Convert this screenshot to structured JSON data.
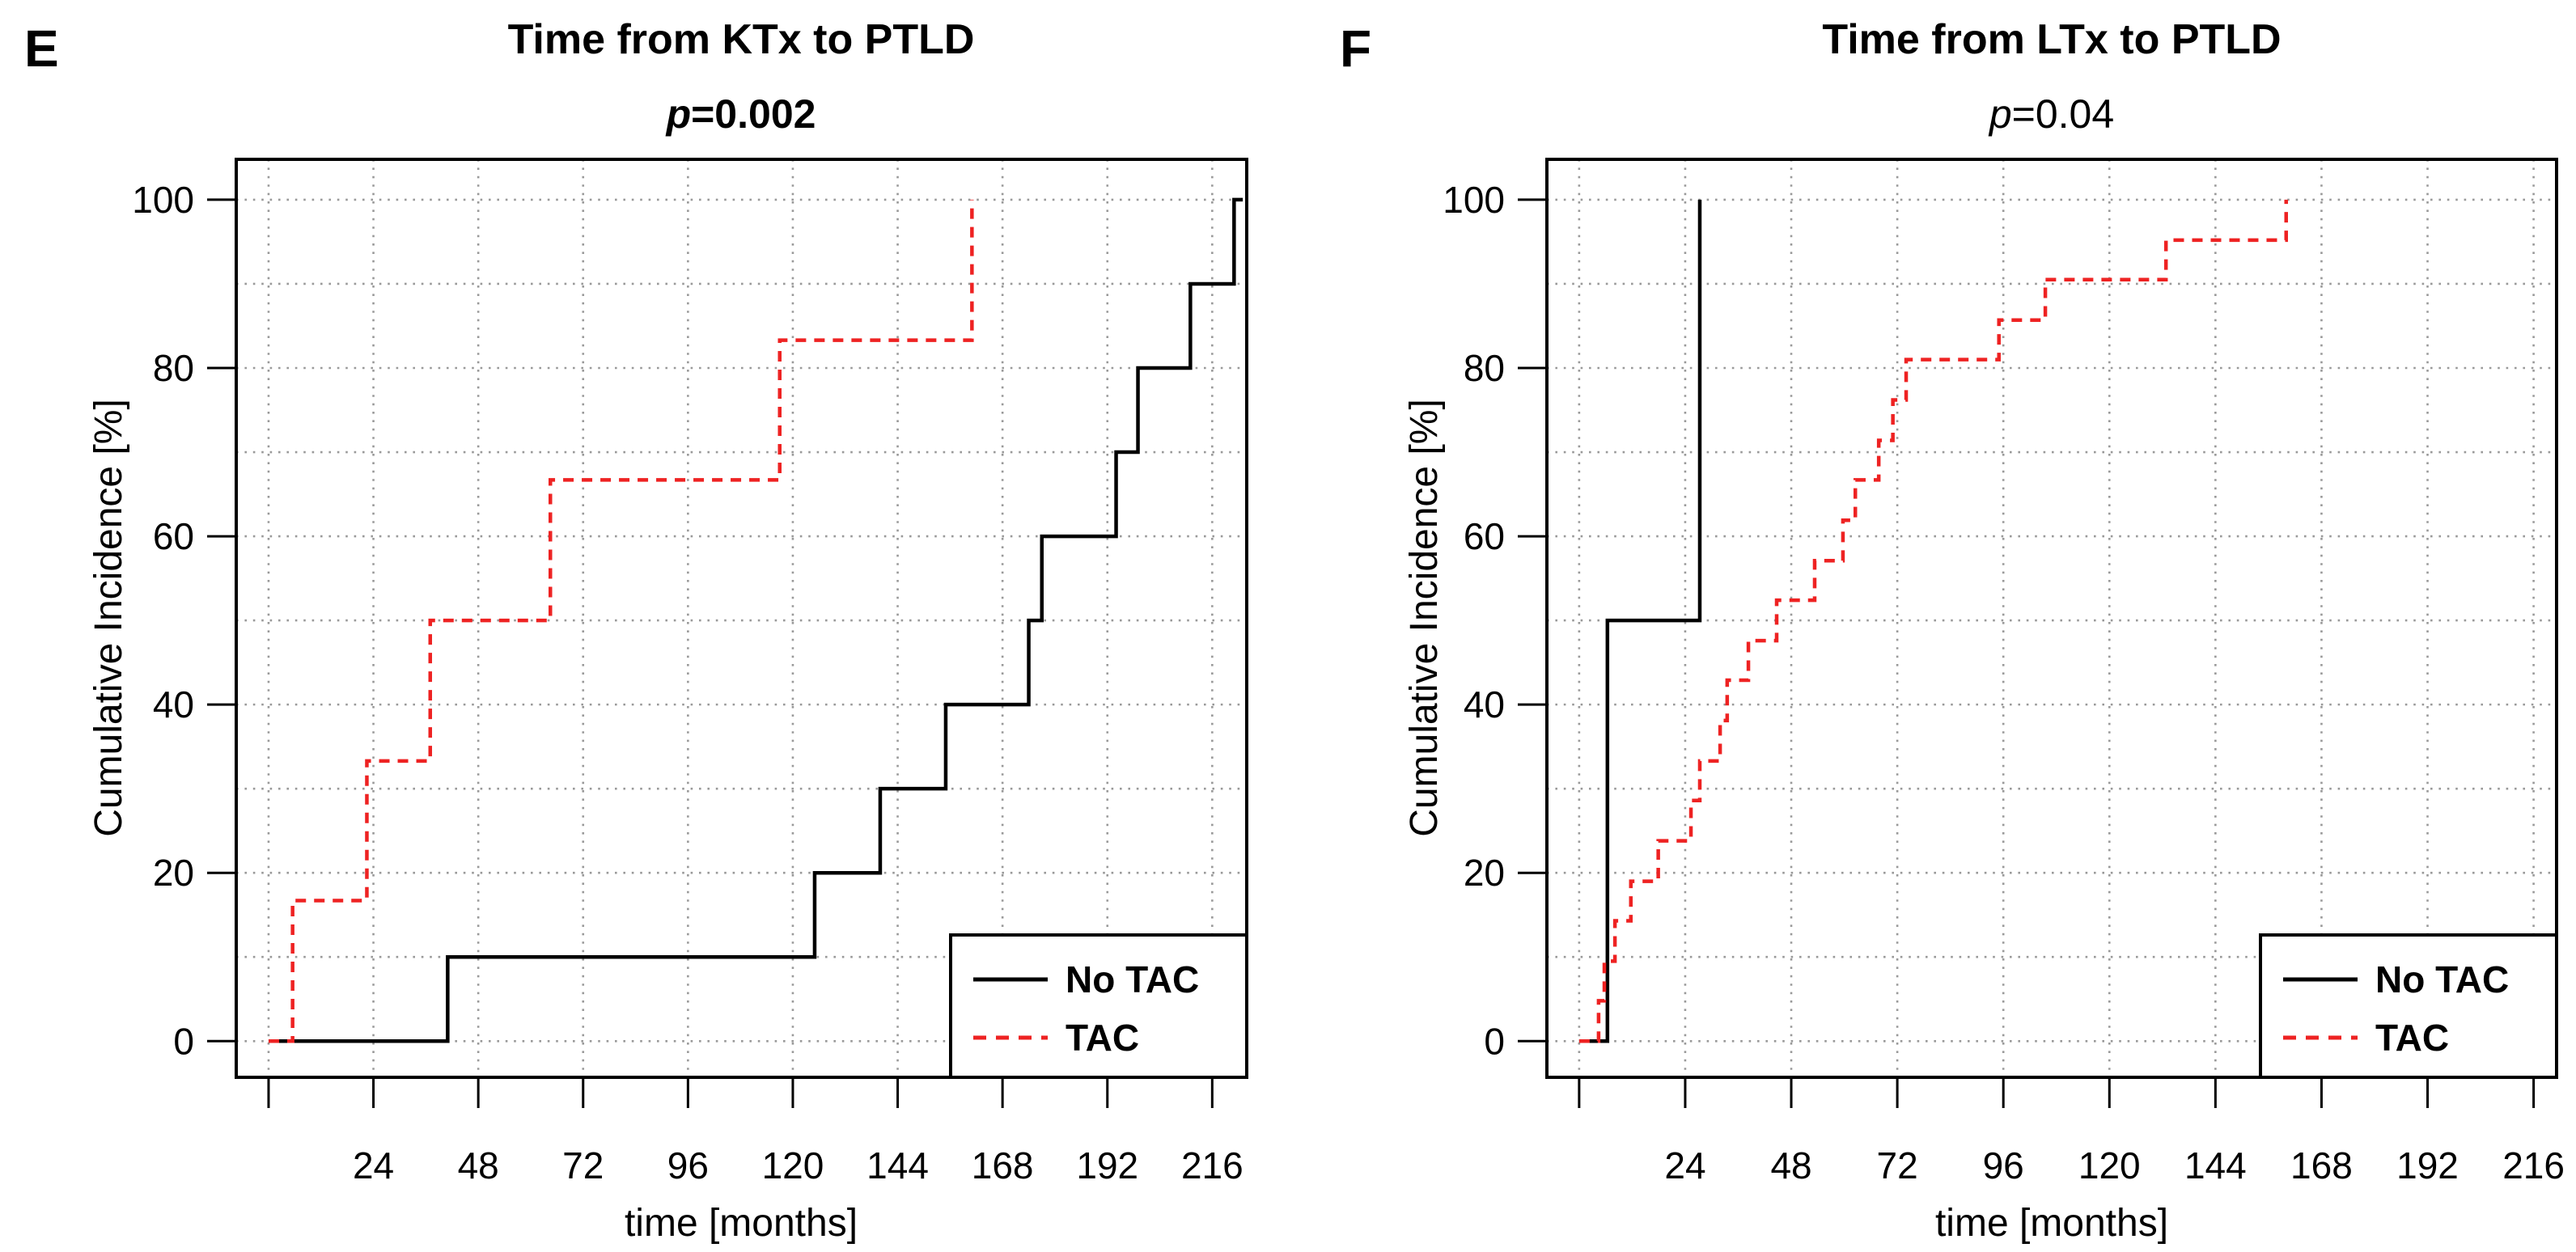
{
  "figure": {
    "background_color": "#ffffff",
    "text_color": "#000000",
    "grid_color": "#999999",
    "curve_black": "#000000",
    "curve_red": "#ee2222",
    "description": "Two cumulative incidence step plots comparing No TAC vs TAC groups"
  },
  "chart_data": [
    {
      "panel_letter": "E",
      "type": "line",
      "subtype": "step-cumulative-incidence",
      "title": "Time from KTx to PTLD",
      "p_symbol": "p",
      "p_eq": "=0.002",
      "p_value": 0.002,
      "p_bold": true,
      "xlabel": "time [months]",
      "ylabel": "Cumulative Incidence [%]",
      "xlim": [
        -7.4,
        223.9
      ],
      "ylim": [
        -4.3,
        104.8
      ],
      "x_ticks": [
        0,
        24,
        48,
        72,
        96,
        120,
        144,
        168,
        192,
        216
      ],
      "x_tick_labels": [
        "",
        "24",
        "48",
        "72",
        "96",
        "120",
        "144",
        "168",
        "192",
        "216"
      ],
      "y_ticks": [
        0,
        20,
        40,
        60,
        80,
        100
      ],
      "y_tick_labels": [
        "0",
        "20",
        "40",
        "60",
        "80",
        "100"
      ],
      "x_grid": [
        0,
        24,
        48,
        72,
        96,
        120,
        144,
        168,
        192,
        216
      ],
      "y_grid": [
        0,
        10,
        20,
        30,
        40,
        50,
        60,
        70,
        80,
        90,
        100
      ],
      "grid": true,
      "legend_position": "bottom-right",
      "legend": {
        "entries": [
          {
            "label": "No TAC",
            "color": "#000000",
            "line": "solid"
          },
          {
            "label": "TAC",
            "color": "#ee2222",
            "line": "dashed"
          }
        ]
      },
      "series": [
        {
          "name": "No TAC",
          "color": "#000000",
          "line": "solid",
          "start": 0,
          "end": 223,
          "events": [
            [
              41,
              10
            ],
            [
              125,
              20
            ],
            [
              140,
              30
            ],
            [
              155,
              40
            ],
            [
              174,
              50
            ],
            [
              177,
              60
            ],
            [
              194,
              70
            ],
            [
              199,
              80
            ],
            [
              211,
              90
            ],
            [
              221,
              100
            ]
          ]
        },
        {
          "name": "TAC",
          "color": "#ee2222",
          "line": "dashed",
          "start": 0,
          "end": 161,
          "events": [
            [
              5.5,
              16.7
            ],
            [
              22.5,
              33.3
            ],
            [
              37,
              50
            ],
            [
              64.5,
              66.7
            ],
            [
              117,
              83.3
            ],
            [
              161,
              100
            ]
          ]
        }
      ]
    },
    {
      "panel_letter": "F",
      "type": "line",
      "subtype": "step-cumulative-incidence",
      "title": "Time from LTx to PTLD",
      "p_symbol": "p",
      "p_eq": "=0.04",
      "p_value": 0.04,
      "p_bold": false,
      "xlabel": "time [months]",
      "ylabel": "Cumulative Incidence [%]",
      "xlim": [
        -7.3,
        221.2
      ],
      "ylim": [
        -4.3,
        104.8
      ],
      "x_ticks": [
        0,
        24,
        48,
        72,
        96,
        120,
        144,
        168,
        192,
        216
      ],
      "x_tick_labels": [
        "",
        "24",
        "48",
        "72",
        "96",
        "120",
        "144",
        "168",
        "192",
        "216"
      ],
      "y_ticks": [
        0,
        20,
        40,
        60,
        80,
        100
      ],
      "y_tick_labels": [
        "0",
        "20",
        "40",
        "60",
        "80",
        "100"
      ],
      "x_grid": [
        0,
        24,
        48,
        72,
        96,
        120,
        144,
        168,
        192,
        216
      ],
      "y_grid": [
        0,
        10,
        20,
        30,
        40,
        50,
        60,
        70,
        80,
        90,
        100
      ],
      "grid": true,
      "legend_position": "bottom-right",
      "legend": {
        "entries": [
          {
            "label": "No TAC",
            "color": "#000000",
            "line": "solid"
          },
          {
            "label": "TAC",
            "color": "#ee2222",
            "line": "dashed"
          }
        ]
      },
      "series": [
        {
          "name": "No TAC",
          "color": "#000000",
          "line": "solid",
          "start": 0,
          "end": 27.3,
          "events": [
            [
              6.4,
              50
            ],
            [
              27.3,
              100
            ]
          ]
        },
        {
          "name": "TAC",
          "color": "#ee2222",
          "line": "dashed",
          "start": 0,
          "end": 160,
          "events": [
            [
              4.4,
              4.8
            ],
            [
              5.7,
              9.5
            ],
            [
              8.1,
              14.3
            ],
            [
              11.7,
              19.0
            ],
            [
              17.9,
              23.8
            ],
            [
              25.3,
              28.6
            ],
            [
              27.3,
              33.3
            ],
            [
              31.9,
              38.1
            ],
            [
              33.5,
              42.9
            ],
            [
              38.3,
              47.6
            ],
            [
              44.7,
              52.4
            ],
            [
              53.3,
              57.1
            ],
            [
              59.7,
              61.9
            ],
            [
              62.5,
              66.7
            ],
            [
              67.8,
              71.4
            ],
            [
              71.0,
              76.2
            ],
            [
              74.0,
              81.0
            ],
            [
              95.0,
              85.7
            ],
            [
              105.5,
              90.5
            ],
            [
              132.8,
              95.2
            ],
            [
              160,
              100
            ]
          ]
        }
      ]
    }
  ]
}
